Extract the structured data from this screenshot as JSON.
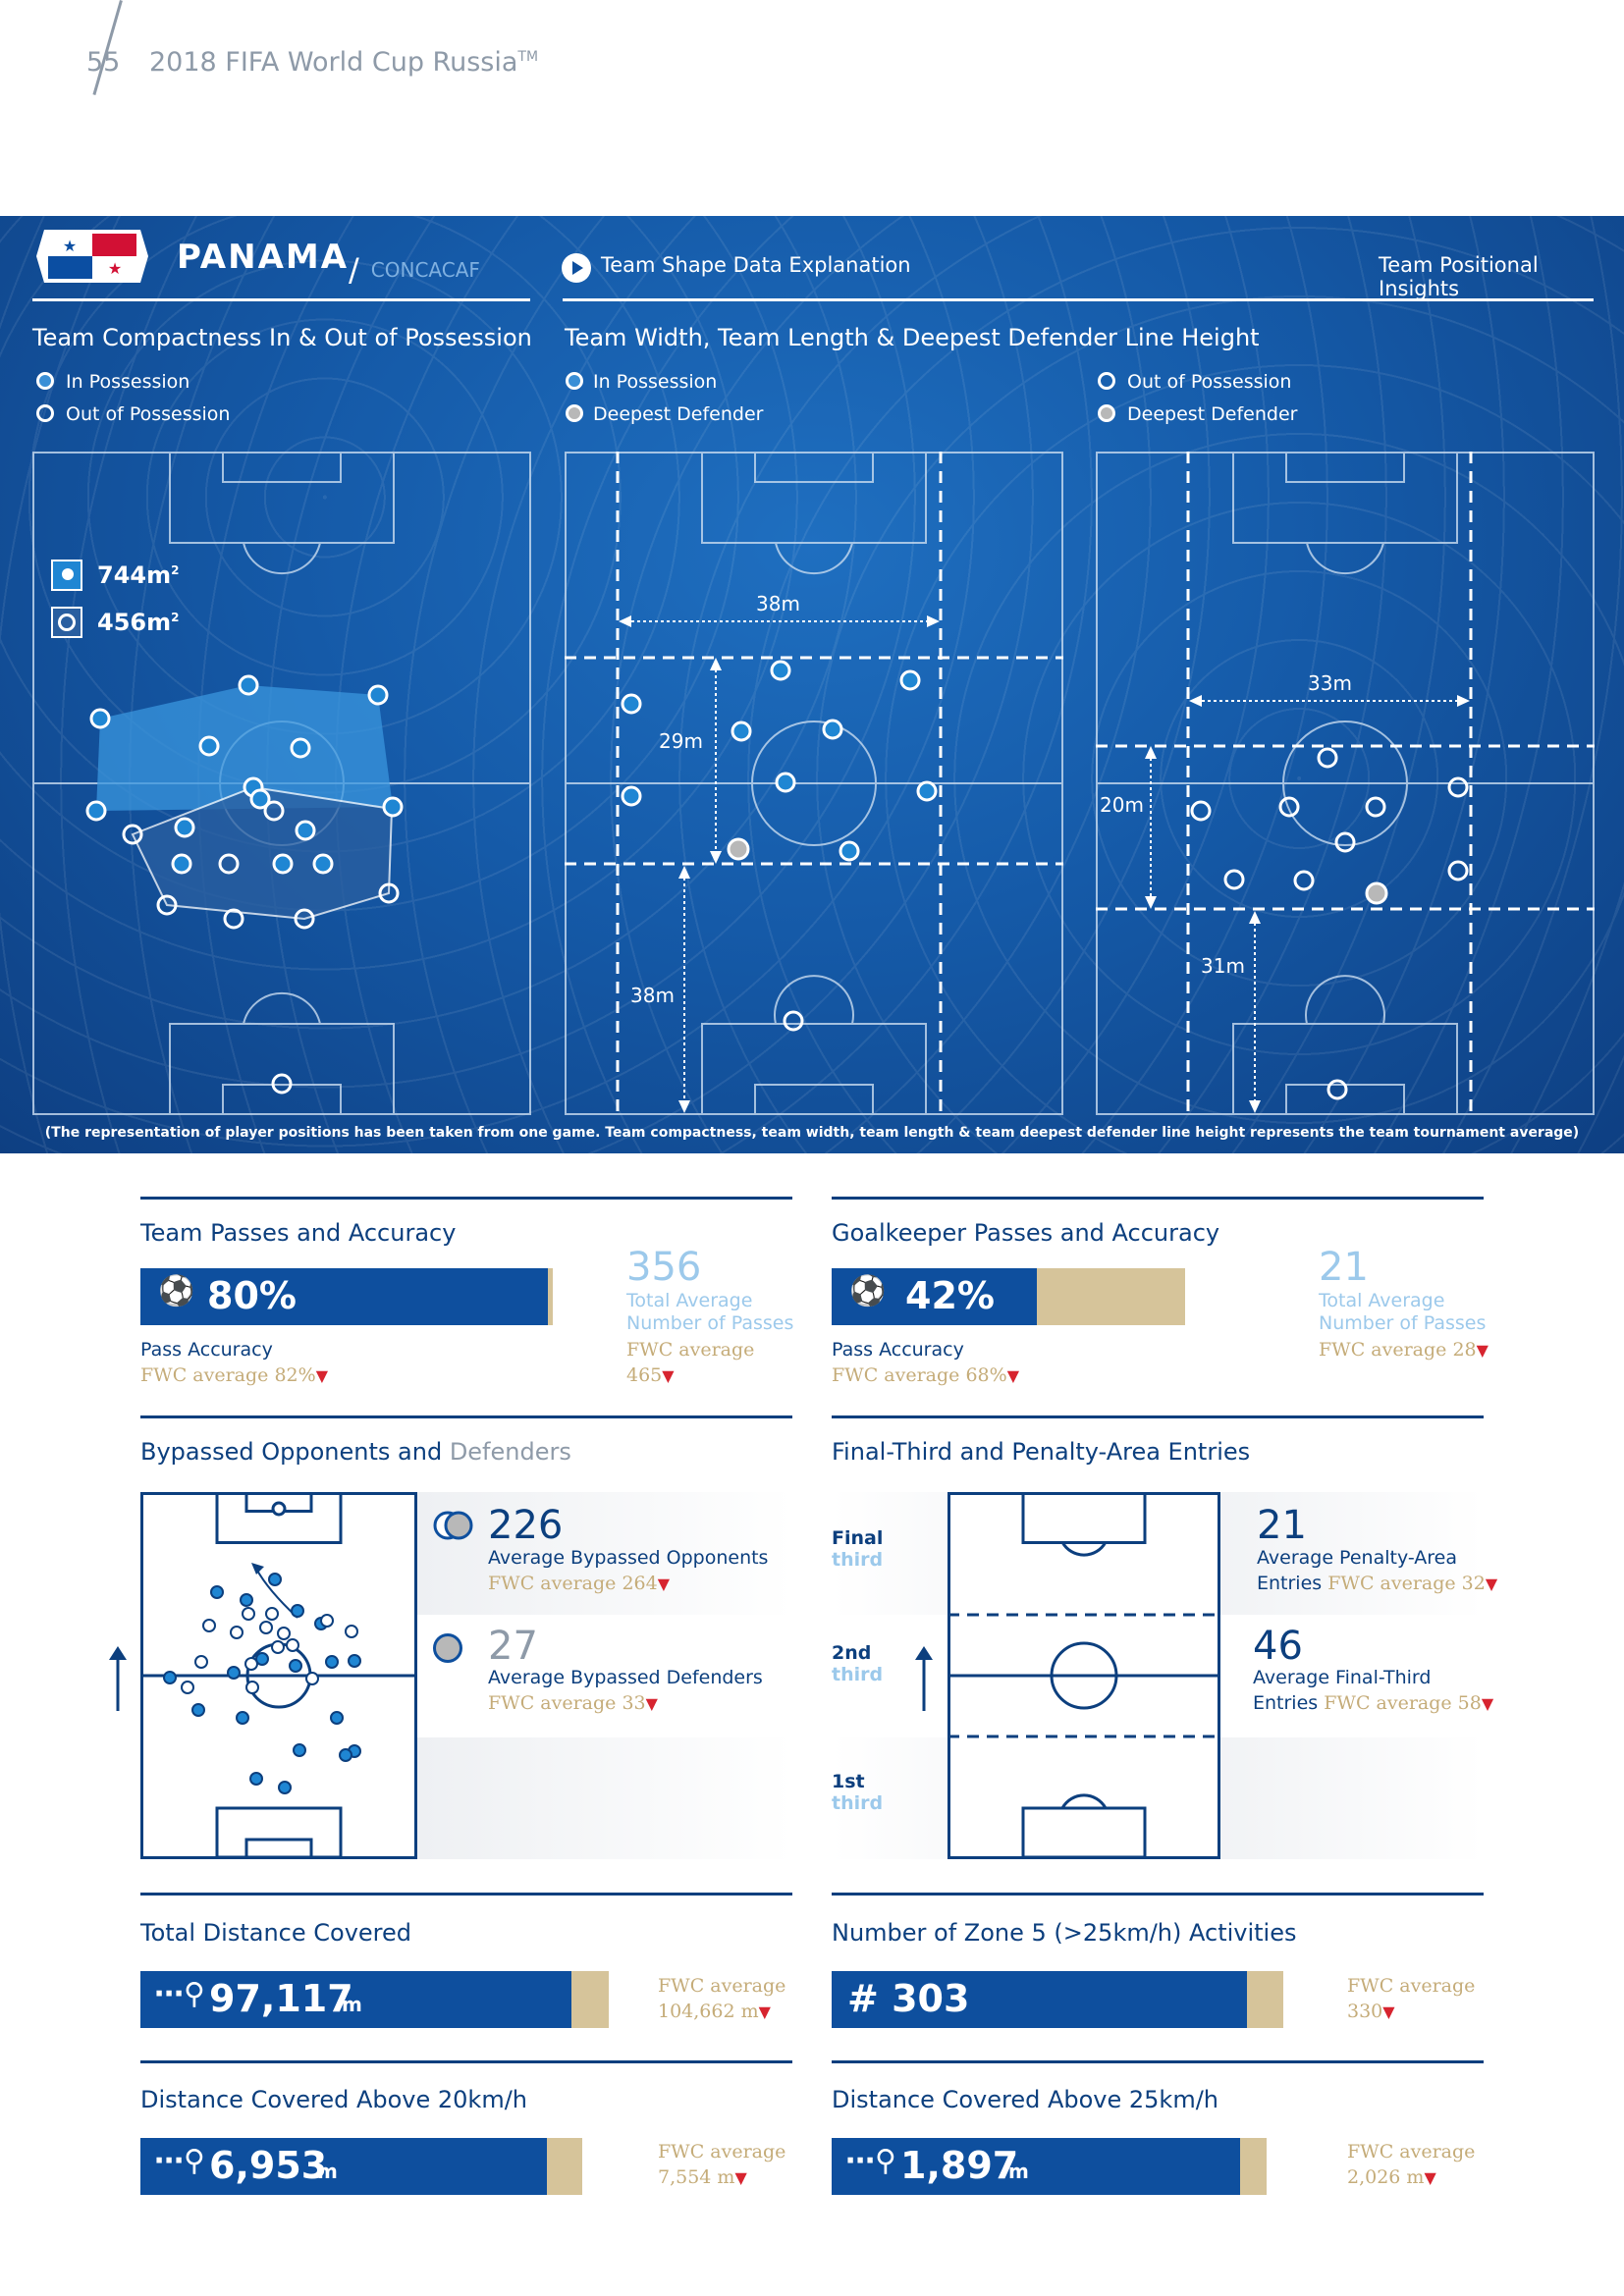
{
  "header": {
    "page_number": "55",
    "title": "2018 FIFA World Cup Russia",
    "tm": "TM"
  },
  "banner": {
    "country": "PANAMA",
    "confederation": "CONCACAF",
    "explanation_link": "Team Shape Data Explanation",
    "insights": "Team Positional Insights",
    "compactness": {
      "title": "Team Compactness In & Out of Possession",
      "legend_in": "In Possession",
      "legend_out": "Out of Possession",
      "in_area": "744m",
      "out_area": "456m",
      "sup": "2"
    },
    "width_length": {
      "title": "Team Width, Team Length & Deepest Defender Line Height",
      "legend_in": "In Possession",
      "legend_deepest": "Deepest Defender",
      "legend_out": "Out of Possession",
      "legend_deepest2": "Deepest Defender",
      "in_width": "38m",
      "in_length": "29m",
      "in_deepest": "38m",
      "out_width": "33m",
      "out_length": "20m",
      "out_deepest": "31m"
    },
    "footnote": "(The representation of player positions has been taken from one game. Team compactness, team width, team length & team deepest defender line height represents the team tournament average)"
  },
  "team_passes": {
    "title": "Team Passes and Accuracy",
    "accuracy": "80%",
    "accuracy_value": 0.8,
    "label": "Pass Accuracy",
    "fwc": "FWC average 82%",
    "total": "356",
    "total_label1": "Total Average",
    "total_label2": "Number of Passes",
    "total_fwc1": "FWC average",
    "total_fwc2": "465"
  },
  "gk_passes": {
    "title": "Goalkeeper Passes and Accuracy",
    "accuracy": "42%",
    "accuracy_value": 0.42,
    "label": "Pass Accuracy",
    "fwc": "FWC average 68%",
    "total": "21",
    "total_label1": "Total Average",
    "total_label2": "Number of Passes",
    "total_fwc": "FWC average 28"
  },
  "bypassed": {
    "title_a": "Bypassed Opponents and",
    "title_b": "Defenders",
    "opp_value": "226",
    "opp_label": "Average Bypassed Opponents",
    "opp_fwc": "FWC average 264",
    "def_value": "27",
    "def_label": "Average Bypassed Defenders",
    "def_fwc": "FWC average 33"
  },
  "entries": {
    "title": "Final-Third and Penalty-Area Entries",
    "final": "Final",
    "second": "2nd",
    "first": "1st",
    "third": "third",
    "pa_value": "21",
    "pa_label1": "Average Penalty-Area",
    "pa_label2": "Entries",
    "pa_fwc": "FWC average 32",
    "ft_value": "46",
    "ft_label1": "Average Final-Third",
    "ft_label2": "Entries",
    "ft_fwc": "FWC average 58"
  },
  "distance": {
    "title": "Total Distance Covered",
    "value": "97,117",
    "unit": "m",
    "fill": 0.92,
    "fwc1": "FWC average",
    "fwc2": "104,662 m"
  },
  "zone5": {
    "title": "Number of Zone 5 (>25km/h) Activities",
    "value": "# 303",
    "fill": 0.92,
    "fwc1": "FWC average",
    "fwc2": "330"
  },
  "dist20": {
    "title": "Distance Covered Above 20km/h",
    "value": "6,953",
    "unit": "m",
    "fill": 0.92,
    "fwc1": "FWC average",
    "fwc2": "7,554 m"
  },
  "dist25": {
    "title": "Distance Covered Above 25km/h",
    "value": "1,897",
    "unit": "m",
    "fill": 0.94,
    "fwc1": "FWC average",
    "fwc2": "2,026 m"
  },
  "colors": {
    "navy": "#0c3f7e",
    "blue": "#0e4f9e",
    "gold": "#d6c49a",
    "red": "#d7242f",
    "light": "#9cc9eb"
  }
}
